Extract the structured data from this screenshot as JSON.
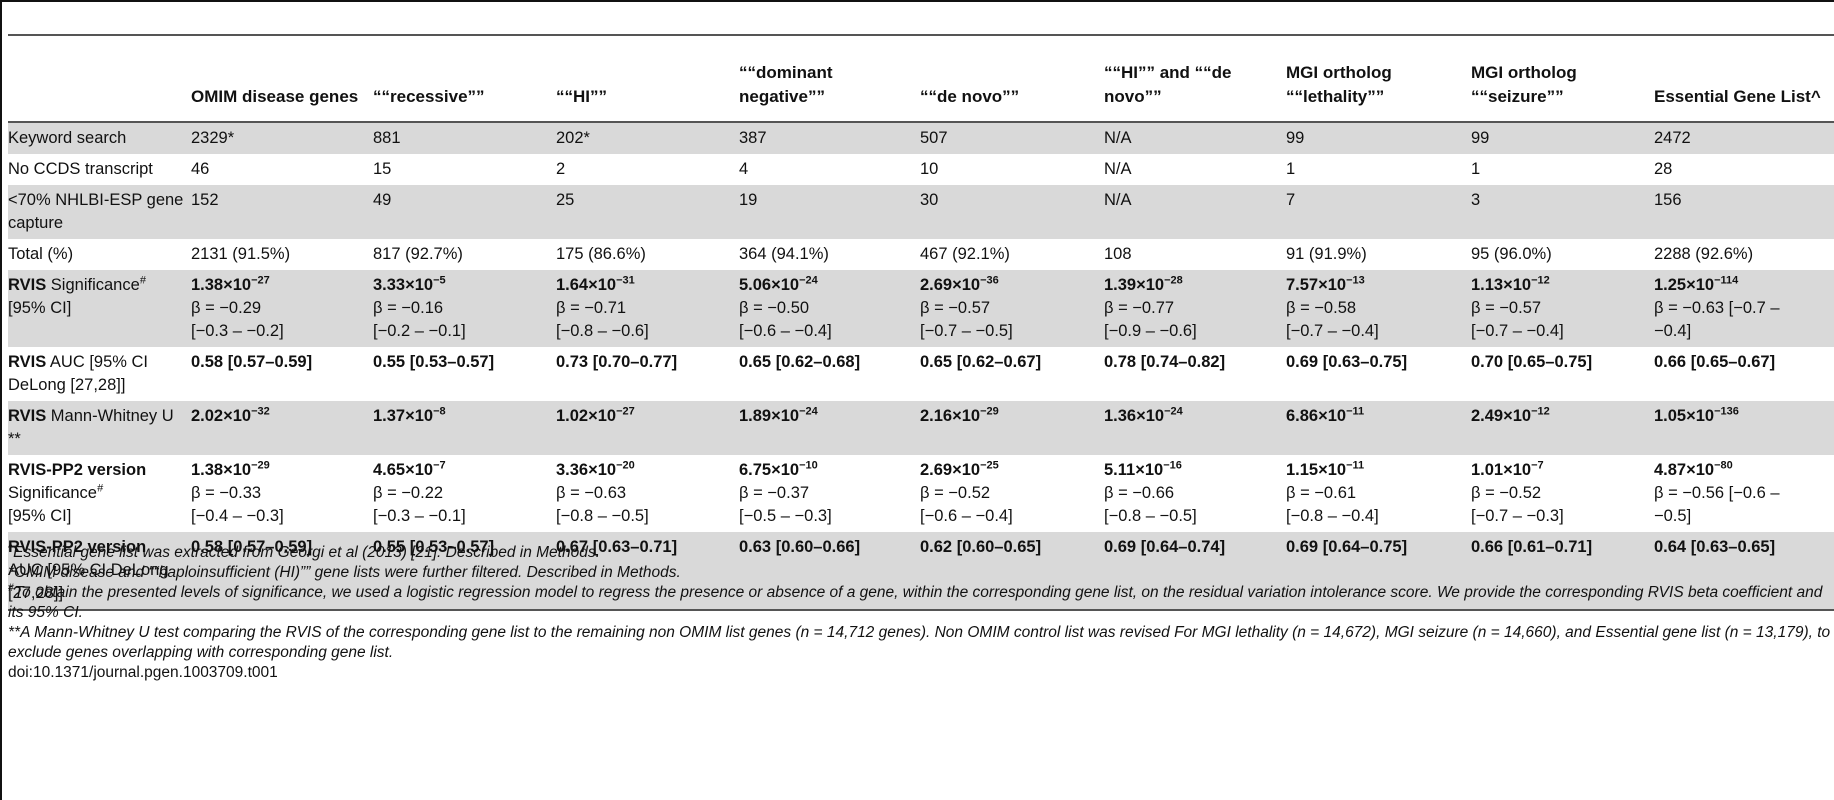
{
  "headers": [
    "",
    "OMIM disease genes",
    "““recessive””",
    "““HI””",
    "““dominant negative””",
    "““de novo””",
    "““HI”” and ““de novo””",
    "MGI ortholog ““lethality””",
    "MGI ortholog ““seizure””",
    "Essential Gene List^"
  ],
  "rows": {
    "keyword": {
      "label": "Keyword search",
      "cells": [
        "2329*",
        "881",
        "202*",
        "387",
        "507",
        "N/A",
        "99",
        "99",
        "2472"
      ]
    },
    "no_ccds": {
      "label": "No CCDS transcript",
      "cells": [
        "46",
        "15",
        "2",
        "4",
        "10",
        "N/A",
        "1",
        "1",
        "28"
      ]
    },
    "capture": {
      "label": "<70% NHLBI-ESP gene capture",
      "cells": [
        "152",
        "49",
        "25",
        "19",
        "30",
        "N/A",
        "7",
        "3",
        "156"
      ]
    },
    "total": {
      "label": "Total (%)",
      "cells": [
        "2131 (91.5%)",
        "817 (92.7%)",
        "175 (86.6%)",
        "364 (94.1%)",
        "467 (92.1%)",
        "108",
        "91 (91.9%)",
        "95 (96.0%)",
        "2288 (92.6%)"
      ]
    },
    "rvis_sig": {
      "label_bold": "RVIS",
      "label_rest": " Significance",
      "label_mark": "#",
      "label_line2": "[95% CI]",
      "cells": [
        {
          "base": "1.38×10",
          "exp": "−27",
          "beta": "β = −0.29",
          "ci": "[−0.3 – −0.2]"
        },
        {
          "base": "3.33×10",
          "exp": "−5",
          "beta": "β = −0.16",
          "ci": "[−0.2 – −0.1]"
        },
        {
          "base": "1.64×10",
          "exp": "−31",
          "beta": "β = −0.71",
          "ci": "[−0.8 – −0.6]"
        },
        {
          "base": "5.06×10",
          "exp": "−24",
          "beta": "β = −0.50",
          "ci": "[−0.6 – −0.4]"
        },
        {
          "base": "2.69×10",
          "exp": "−36",
          "beta": "β = −0.57",
          "ci": "[−0.7 – −0.5]"
        },
        {
          "base": "1.39×10",
          "exp": "−28",
          "beta": "β = −0.77",
          "ci": "[−0.9 – −0.6]"
        },
        {
          "base": "7.57×10",
          "exp": "−13",
          "beta": "β = −0.58",
          "ci": "[−0.7 – −0.4]"
        },
        {
          "base": "1.13×10",
          "exp": "−12",
          "beta": "β = −0.57",
          "ci": "[−0.7 – −0.4]"
        },
        {
          "base": "1.25×10",
          "exp": "−114",
          "beta": "β = −0.63 [−0.7 –",
          "ci": "−0.4]"
        }
      ]
    },
    "rvis_auc": {
      "label_bold": "RVIS",
      "label_rest": " AUC [95% CI DeLong [27,28]]",
      "cells": [
        "0.58 [0.57–0.59]",
        "0.55 [0.53–0.57]",
        "0.73 [0.70–0.77]",
        "0.65 [0.62–0.68]",
        "0.65 [0.62–0.67]",
        "0.78 [0.74–0.82]",
        "0.69 [0.63–0.75]",
        "0.70 [0.65–0.75]",
        "0.66 [0.65–0.67]"
      ]
    },
    "rvis_mw": {
      "label_bold": "RVIS",
      "label_rest": " Mann-Whitney U **",
      "cells": [
        {
          "base": "2.02×10",
          "exp": "−32"
        },
        {
          "base": "1.37×10",
          "exp": "−8"
        },
        {
          "base": "1.02×10",
          "exp": "−27"
        },
        {
          "base": "1.89×10",
          "exp": "−24"
        },
        {
          "base": "2.16×10",
          "exp": "−29"
        },
        {
          "base": "1.36×10",
          "exp": "−24"
        },
        {
          "base": "6.86×10",
          "exp": "−11"
        },
        {
          "base": "2.49×10",
          "exp": "−12"
        },
        {
          "base": "1.05×10",
          "exp": "−136"
        }
      ]
    },
    "pp2_sig": {
      "label_bold": "RVIS-PP2 version",
      "label_rest": "Significance",
      "label_mark": "#",
      "label_line2": "[95% CI]",
      "cells": [
        {
          "base": "1.38×10",
          "exp": "−29",
          "beta": "β = −0.33",
          "ci": "[−0.4 – −0.3]"
        },
        {
          "base": "4.65×10",
          "exp": "−7",
          "beta": "β = −0.22",
          "ci": "[−0.3 – −0.1]"
        },
        {
          "base": "3.36×10",
          "exp": "−20",
          "beta": "β = −0.63",
          "ci": "[−0.8 – −0.5]"
        },
        {
          "base": "6.75×10",
          "exp": "−10",
          "beta": "β = −0.37",
          "ci": "[−0.5 – −0.3]"
        },
        {
          "base": "2.69×10",
          "exp": "−25",
          "beta": "β = −0.52",
          "ci": "[−0.6 – −0.4]"
        },
        {
          "base": "5.11×10",
          "exp": "−16",
          "beta": "β = −0.66",
          "ci": "[−0.8 – −0.5]"
        },
        {
          "base": "1.15×10",
          "exp": "−11",
          "beta": "β = −0.61",
          "ci": "[−0.8 – −0.4]"
        },
        {
          "base": "1.01×10",
          "exp": "−7",
          "beta": "β = −0.52",
          "ci": "[−0.7 – −0.3]"
        },
        {
          "base": "4.87×10",
          "exp": "−80",
          "beta": "β = −0.56 [−0.6 –",
          "ci": "−0.5]"
        }
      ]
    },
    "pp2_auc": {
      "label_bold": "RVIS-PP2 version",
      "label_rest": "AUC [95% CI DeLong [27,28]]",
      "cells": [
        "0.58 [0.57–0.59]",
        "0.55 [0.53–0.57]",
        "0.67 [0.63–0.71]",
        "0.63 [0.60–0.66]",
        "0.62 [0.60–0.65]",
        "0.69 [0.64–0.74]",
        "0.69 [0.64–0.75]",
        "0.66 [0.61–0.71]",
        "0.64 [0.63–0.65]"
      ]
    }
  },
  "footnotes": {
    "caret_mark": "^",
    "caret_text": "Essential gene list was extracted from Georgi et al (2013) [21]. Described in Methods.",
    "star_text": "*OMIM disease and ““haploinsufficient (HI)”” gene lists were further filtered. Described in Methods.",
    "hash_mark": "#",
    "hash_text": "To obtain the presented levels of significance, we used a logistic regression model to regress the presence or absence of a gene, within the corresponding gene list, on the residual variation intolerance score. We provide the corresponding RVIS beta coefficient and its 95% CI.",
    "dstar_text": "**A Mann-Whitney U test comparing the RVIS of the corresponding gene list to the remaining non OMIM list genes (n = 14,712 genes). Non OMIM control list was revised For MGI lethality (n = 14,672), MGI seizure (n = 14,660), and Essential gene list (n = 13,179), to exclude genes overlapping with corresponding gene list.",
    "doi": "doi:10.1371/journal.pgen.1003709.t001"
  }
}
